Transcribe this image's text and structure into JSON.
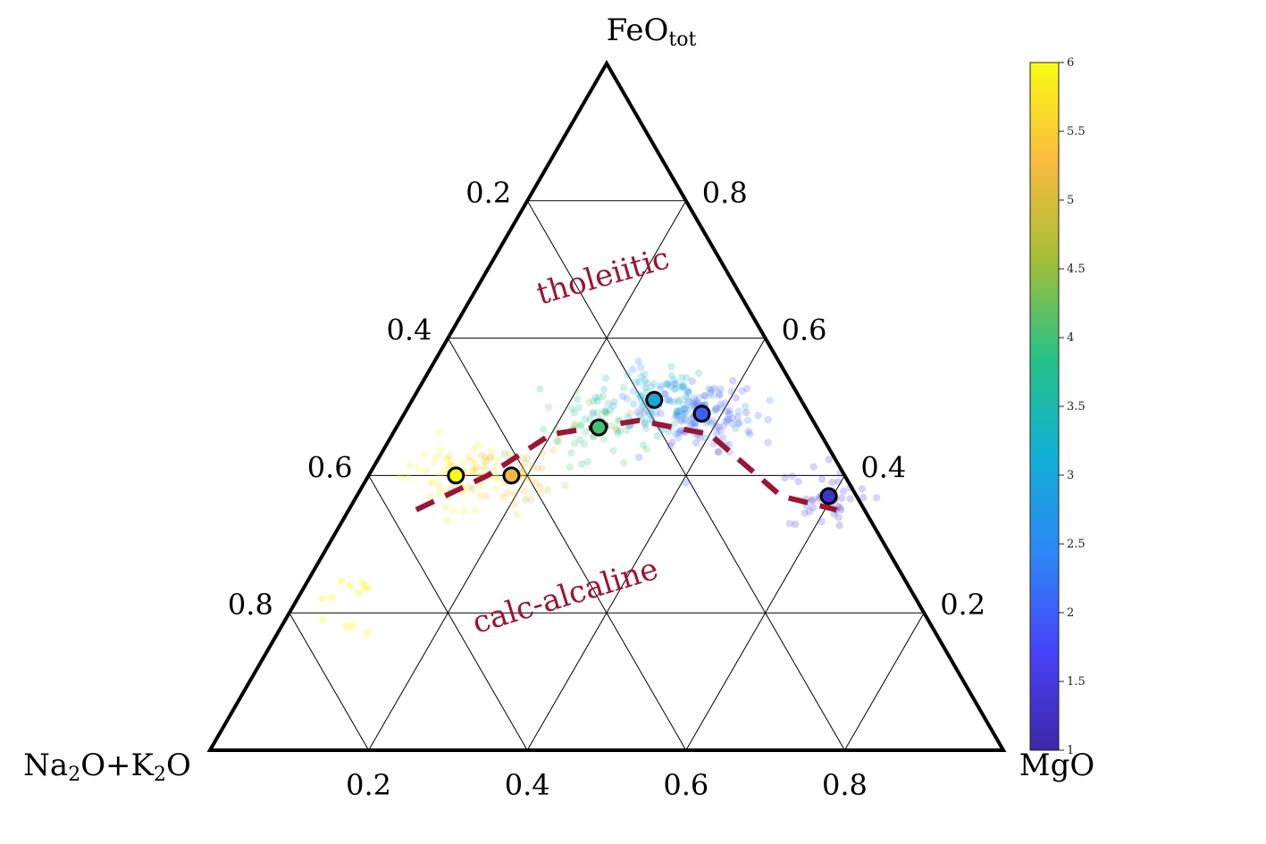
{
  "chart_data": {
    "type": "scatter",
    "subtype": "ternary",
    "vertices": {
      "left": "Na2O+K2O",
      "right": "MgO",
      "top": "FeOtot"
    },
    "vertex_labels": {
      "top": {
        "base": "FeO",
        "sub": "tot"
      },
      "left": [
        {
          "t": "Na"
        },
        {
          "t": "2",
          "sub": true
        },
        {
          "t": "O+K"
        },
        {
          "t": "2",
          "sub": true
        },
        {
          "t": "O"
        }
      ],
      "right": [
        {
          "t": "MgO"
        }
      ]
    },
    "ticks": {
      "bottom": [
        "0.2",
        "0.4",
        "0.6",
        "0.8"
      ],
      "left": [
        "0.2",
        "0.4",
        "0.6",
        "0.8"
      ],
      "right": [
        "0.8",
        "0.6",
        "0.4",
        "0.2"
      ]
    },
    "grid": true,
    "grid_step": 0.2,
    "regions": [
      {
        "label": "tholeiitic",
        "color": "#9b1535"
      },
      {
        "label": "calc-alcaline",
        "color": "#9b1535"
      }
    ],
    "boundary_line": {
      "style": "dashed",
      "color": "#9b1535",
      "points_bottom_right": [
        [
          0.26,
          0.35
        ],
        [
          0.35,
          0.4
        ],
        [
          0.43,
          0.46
        ],
        [
          0.54,
          0.48
        ],
        [
          0.63,
          0.46
        ],
        [
          0.72,
          0.37
        ],
        [
          0.79,
          0.35
        ]
      ]
    },
    "averages": {
      "note": "points given as [MgO-axis value, FeOtot value]",
      "points": [
        {
          "x": 0.31,
          "y": 0.4,
          "value": 6.0
        },
        {
          "x": 0.38,
          "y": 0.4,
          "value": 5.2
        },
        {
          "x": 0.49,
          "y": 0.47,
          "value": 4.0
        },
        {
          "x": 0.56,
          "y": 0.51,
          "value": 3.0
        },
        {
          "x": 0.62,
          "y": 0.49,
          "value": 2.0
        },
        {
          "x": 0.78,
          "y": 0.37,
          "value": 1.3
        }
      ]
    },
    "colorbar": {
      "min": 1,
      "max": 6,
      "ticks": [
        "1",
        "1.5",
        "2",
        "2.5",
        "3",
        "3.5",
        "4",
        "4.5",
        "5",
        "5.5",
        "6"
      ],
      "colormap": [
        "#3e26a8",
        "#4743f8",
        "#2e87f7",
        "#10b0d5",
        "#27c286",
        "#a4be37",
        "#fbbc3d",
        "#f9fb15"
      ]
    }
  },
  "colors": {
    "axis": "#000000",
    "grid": "#000000",
    "region_text": "#9b1535",
    "boundary": "#9b1535"
  }
}
